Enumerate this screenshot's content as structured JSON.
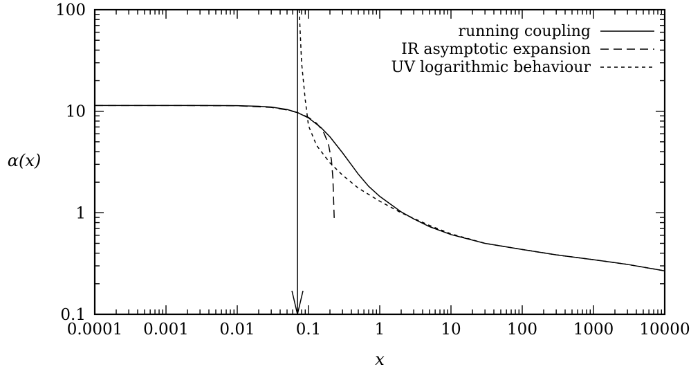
{
  "chart_data": {
    "type": "line",
    "title": "",
    "xlabel": "x",
    "ylabel": "α(x)",
    "xscale": "log",
    "yscale": "log",
    "xlim": [
      0.0001,
      10000
    ],
    "ylim": [
      0.1,
      100
    ],
    "grid": false,
    "legend_position": "top-right",
    "x_ticks": [
      {
        "value": 0.0001,
        "label": "0.0001"
      },
      {
        "value": 0.001,
        "label": "0.001"
      },
      {
        "value": 0.01,
        "label": "0.01"
      },
      {
        "value": 0.1,
        "label": "0.1"
      },
      {
        "value": 1,
        "label": "1"
      },
      {
        "value": 10,
        "label": "10"
      },
      {
        "value": 100,
        "label": "100"
      },
      {
        "value": 1000,
        "label": "1000"
      },
      {
        "value": 10000,
        "label": "10000"
      }
    ],
    "y_ticks": [
      {
        "value": 0.1,
        "label": "0.1"
      },
      {
        "value": 1,
        "label": "1"
      },
      {
        "value": 10,
        "label": "10"
      },
      {
        "value": 100,
        "label": "100"
      }
    ],
    "series": [
      {
        "name": "running coupling",
        "style": "solid",
        "points": [
          [
            0.0001,
            11.4
          ],
          [
            0.001,
            11.4
          ],
          [
            0.003,
            11.4
          ],
          [
            0.01,
            11.35
          ],
          [
            0.02,
            11.2
          ],
          [
            0.03,
            11.0
          ],
          [
            0.05,
            10.4
          ],
          [
            0.07,
            9.7
          ],
          [
            0.1,
            8.6
          ],
          [
            0.15,
            6.9
          ],
          [
            0.2,
            5.6
          ],
          [
            0.3,
            3.9
          ],
          [
            0.5,
            2.4
          ],
          [
            0.7,
            1.82
          ],
          [
            1,
            1.45
          ],
          [
            2,
            1.02
          ],
          [
            3,
            0.87
          ],
          [
            5,
            0.73
          ],
          [
            10,
            0.61
          ],
          [
            30,
            0.5
          ],
          [
            100,
            0.435
          ],
          [
            300,
            0.385
          ],
          [
            1000,
            0.345
          ],
          [
            3000,
            0.31
          ],
          [
            10000,
            0.268
          ]
        ]
      },
      {
        "name": "IR asymptotic expansion",
        "style": "dashed",
        "points": [
          [
            0.0001,
            11.4
          ],
          [
            0.001,
            11.4
          ],
          [
            0.01,
            11.33
          ],
          [
            0.03,
            10.9
          ],
          [
            0.05,
            10.3
          ],
          [
            0.07,
            9.7
          ],
          [
            0.1,
            8.7
          ],
          [
            0.13,
            7.6
          ],
          [
            0.16,
            6.4
          ],
          [
            0.19,
            4.8
          ],
          [
            0.21,
            3.3
          ],
          [
            0.22,
            2.2
          ],
          [
            0.23,
            0.85
          ]
        ]
      },
      {
        "name": "UV logarithmic behaviour",
        "style": "dotted",
        "points": [
          [
            0.074,
            100
          ],
          [
            0.08,
            30
          ],
          [
            0.09,
            13
          ],
          [
            0.1,
            7.2
          ],
          [
            0.13,
            4.6
          ],
          [
            0.2,
            3.1
          ],
          [
            0.3,
            2.35
          ],
          [
            0.5,
            1.75
          ],
          [
            1,
            1.3
          ],
          [
            2,
            1.0
          ],
          [
            5,
            0.75
          ],
          [
            10,
            0.62
          ],
          [
            30,
            0.5
          ],
          [
            100,
            0.435
          ],
          [
            300,
            0.385
          ],
          [
            1000,
            0.345
          ],
          [
            3000,
            0.31
          ],
          [
            10000,
            0.268
          ]
        ]
      }
    ],
    "annotations": [
      {
        "type": "arrow",
        "x": 0.07,
        "from_y": 100,
        "to_y": 0.1
      }
    ]
  }
}
